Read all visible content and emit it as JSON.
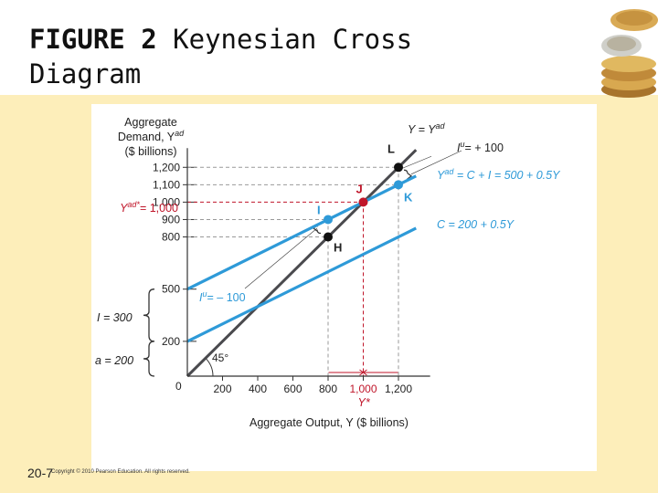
{
  "slide": {
    "title_bold": "FIGURE 2",
    "title_rest": "Keynesian Cross",
    "title_line2": "Diagram",
    "footer_num": "20-7",
    "copyright": "Copyright © 2010 Pearson Education. All rights reserved."
  },
  "chart_data": {
    "type": "line",
    "ylabel": [
      "Aggregate",
      "Demand, Y",
      "($ billions)"
    ],
    "ylabel_sup": "ad",
    "xlabel": "Aggregate Output, Y ($ billions)",
    "xlim": [
      0,
      1300
    ],
    "ylim": [
      0,
      1300
    ],
    "xticks": [
      "200",
      "400",
      "600",
      "800",
      "1,000",
      "1,200"
    ],
    "xtick_values": [
      200,
      400,
      600,
      800,
      1000,
      1200
    ],
    "yticks": [
      "200",
      "500",
      "800",
      "900",
      "1,000",
      "1,100",
      "1,200"
    ],
    "ytick_values": [
      200,
      500,
      800,
      900,
      1000,
      1100,
      1200
    ],
    "origin_label": "0",
    "series": [
      {
        "label": "Y = Y",
        "label_sup": "ad",
        "x": [
          0,
          1300
        ],
        "y": [
          0,
          1300
        ],
        "color": "#4a4a4e"
      },
      {
        "label": "Y",
        "label_sup": "ad",
        "label_rest": " = C + I = 500 + 0.5Y",
        "x": [
          0,
          1300
        ],
        "y": [
          500,
          1150
        ],
        "color": "#2e9ad8"
      },
      {
        "label": "C = 200 + 0.5Y",
        "x": [
          0,
          1300
        ],
        "y": [
          200,
          850
        ],
        "color": "#2e9ad8"
      }
    ],
    "points": [
      {
        "name": "L",
        "x": 1200,
        "y": 1200,
        "color": "#111111"
      },
      {
        "name": "K",
        "x": 1200,
        "y": 1100,
        "color": "#2e9ad8"
      },
      {
        "name": "J",
        "x": 1000,
        "y": 1000,
        "color": "#c0162a"
      },
      {
        "name": "I",
        "x": 800,
        "y": 900,
        "color": "#2e9ad8"
      },
      {
        "name": "H",
        "x": 800,
        "y": 800,
        "color": "#111111"
      }
    ],
    "annotations": {
      "iu_pos": "I",
      "iu_pos_sup": "u",
      "iu_pos_val": "= + 100",
      "iu_neg": "I",
      "iu_neg_sup": "u",
      "iu_neg_val": "= – 100",
      "i_brace": "I = 300",
      "a_brace": "a = 200",
      "angle": "45°",
      "yad_star": "Y",
      "yad_star_sup": "ad*",
      "yad_star_val": "= 1,000",
      "y_star": "Y*"
    },
    "colors": {
      "accent": "#c0162a",
      "line": "#2e9ad8",
      "diag": "#4a4a4e"
    }
  }
}
